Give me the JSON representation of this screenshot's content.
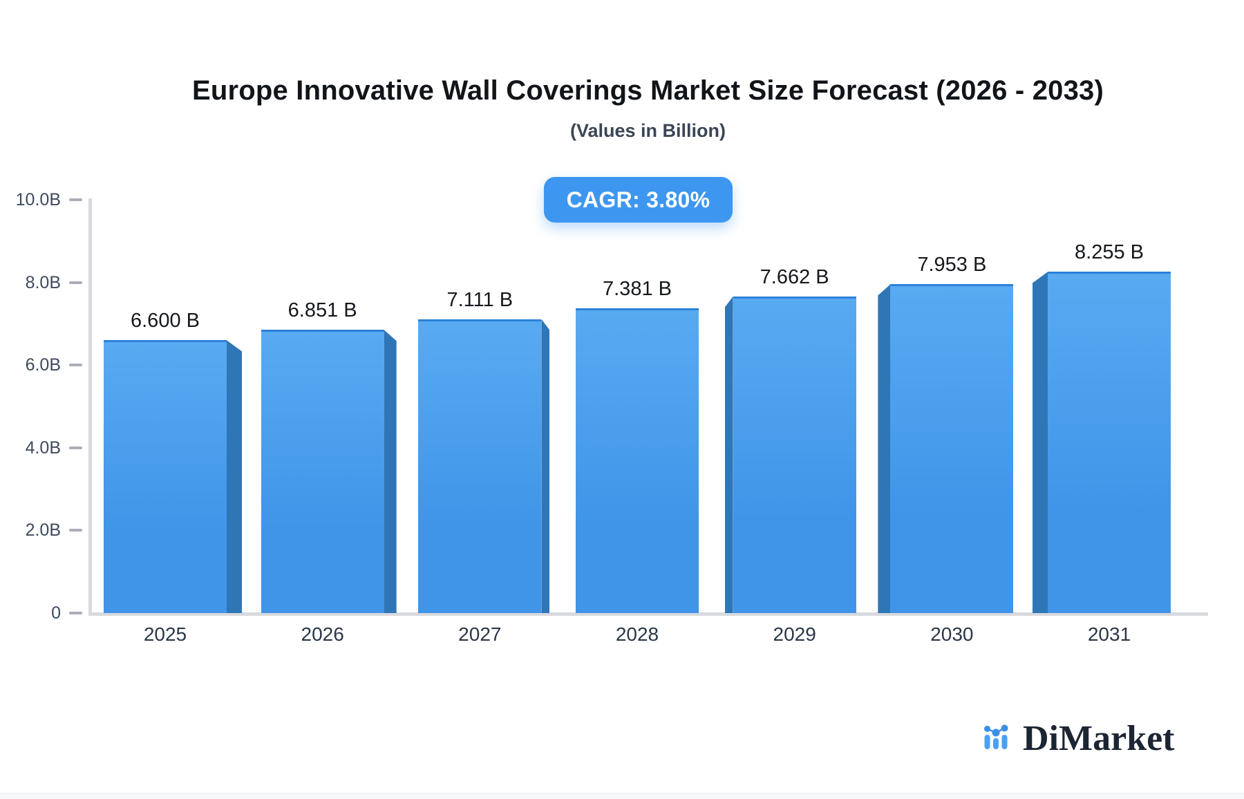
{
  "chart_data": {
    "type": "bar",
    "title": "Europe Innovative Wall Coverings Market Size Forecast (2026 - 2033)",
    "subtitle": "(Values in Billion)",
    "cagr_label": "CAGR: 3.80%",
    "categories": [
      "2025",
      "2026",
      "2027",
      "2028",
      "2029",
      "2030",
      "2031"
    ],
    "values": [
      6.6,
      6.851,
      7.111,
      7.381,
      7.662,
      7.953,
      8.255
    ],
    "value_labels": [
      "6.600 B",
      "6.851 B",
      "7.111 B",
      "7.381 B",
      "7.662 B",
      "7.953 B",
      "8.255 B"
    ],
    "xlabel": "",
    "ylabel": "",
    "ylim": [
      0,
      10
    ],
    "yticks": [
      {
        "value": 10,
        "label": "10.0B"
      },
      {
        "value": 8,
        "label": "8.0B"
      },
      {
        "value": 6,
        "label": "6.0B"
      },
      {
        "value": 4,
        "label": "4.0B"
      },
      {
        "value": 2,
        "label": "2.0B"
      },
      {
        "value": 0,
        "label": "0"
      }
    ],
    "grid": "off",
    "legend": "none",
    "bar_style": "3d-perspective-toward-center",
    "colors": {
      "bar_front_top": "#58aaf1",
      "bar_front_bottom": "#4095e9",
      "bar_top_edge": "#2c82d8",
      "bar_side": "#2e76b6",
      "badge_bg": "#3d97f0",
      "badge_text": "#ffffff",
      "axis_line": "#d9dade",
      "tick_dash": "#a9aeb8",
      "ytick_label_color": "#3e4a5c",
      "xtick_label_color": "#2b3648",
      "value_label_color": "#14171c",
      "title_color": "#111519",
      "subtitle_color": "#3b4555"
    }
  },
  "branding": {
    "logo_text": "DiMarket",
    "logo_icon": "mini-bar-chart-with-dots-icon",
    "logo_text_color": "#1c2533",
    "logo_blue": "#4aa1f3",
    "logo_dot_blue": "#3a8ee6"
  }
}
